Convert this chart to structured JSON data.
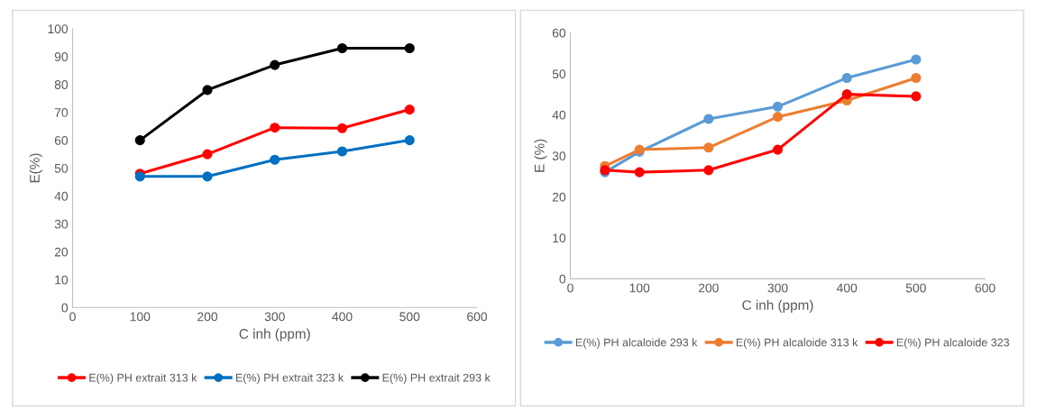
{
  "chart_data": [
    {
      "type": "line",
      "xlabel": "C inh (ppm)",
      "ylabel": "E(%)",
      "x": [
        100,
        200,
        300,
        400,
        500
      ],
      "xlim": [
        0,
        600
      ],
      "xticks": [
        0,
        100,
        200,
        300,
        400,
        500,
        600
      ],
      "ylim": [
        0,
        100
      ],
      "yticks": [
        0,
        10,
        20,
        30,
        40,
        50,
        60,
        70,
        80,
        90,
        100
      ],
      "grid": false,
      "legend": "bottom",
      "marker": "circle",
      "line_style": "solid",
      "series": [
        {
          "name": "E(%) PH extrait 313 k",
          "color": "#ff0000",
          "values": [
            48,
            55,
            64.5,
            64.3,
            71
          ]
        },
        {
          "name": "E(%) PH extrait 323 k",
          "color": "#0070c0",
          "values": [
            47,
            47,
            53,
            56,
            60
          ]
        },
        {
          "name": "E(%) PH extrait 293 k",
          "color": "#000000",
          "values": [
            60,
            78,
            87,
            93,
            93
          ]
        }
      ]
    },
    {
      "type": "line",
      "xlabel": "C inh (ppm)",
      "ylabel": "E (%)",
      "x": [
        50,
        100,
        200,
        300,
        400,
        500
      ],
      "xlim": [
        0,
        600
      ],
      "xticks": [
        0,
        100,
        200,
        300,
        400,
        500,
        600
      ],
      "ylim": [
        0,
        60
      ],
      "yticks": [
        0,
        10,
        20,
        30,
        40,
        50,
        60
      ],
      "grid": false,
      "legend": "bottom",
      "marker": "circle",
      "line_style": "solid",
      "series": [
        {
          "name": "E(%) PH alcaloide 293 k",
          "color": "#5b9bd5",
          "values": [
            26,
            31,
            39,
            42,
            49,
            53.5
          ]
        },
        {
          "name": "E(%) PH alcaloide 313 k",
          "color": "#ed7d31",
          "values": [
            27.5,
            31.5,
            32,
            39.5,
            43.5,
            49
          ]
        },
        {
          "name": "E(%) PH alcaloide 323",
          "color": "#ff0000",
          "values": [
            26.5,
            26,
            26.5,
            31.5,
            45,
            44.5
          ]
        }
      ]
    }
  ]
}
